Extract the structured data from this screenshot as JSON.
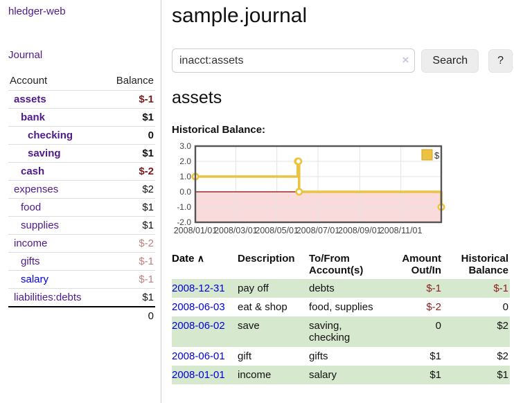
{
  "colors": {
    "link_purple": "#4e1a8b",
    "link_blue": "#0000dd",
    "negative_dark": "#7c1a1a",
    "negative_light": "#c07f7f",
    "row_green": "#d6e8ce",
    "chart_gold": "#edc240",
    "chart_pink": "#fadbdb",
    "chart_zero_line": "#8b0000",
    "chart_border": "#545454",
    "chart_grid": "#e3e3e3"
  },
  "sidebar": {
    "app_title": "hledger-web",
    "nav_journal": "Journal",
    "accounts_table": {
      "header_account": "Account",
      "header_balance": "Balance",
      "rows": [
        {
          "label": "assets",
          "indent": 1,
          "bold": true,
          "color": "purple",
          "balance": "$-1",
          "balance_class": "bal-neg"
        },
        {
          "label": "bank",
          "indent": 2,
          "bold": true,
          "color": "purple",
          "balance": "$1",
          "balance_class": "bal-pos"
        },
        {
          "label": "checking",
          "indent": 3,
          "bold": true,
          "color": "purple",
          "balance": "0",
          "balance_class": "bal-pos"
        },
        {
          "label": "saving",
          "indent": 3,
          "bold": true,
          "color": "purple",
          "balance": "$1",
          "balance_class": "bal-pos"
        },
        {
          "label": "cash",
          "indent": 2,
          "bold": true,
          "color": "purple",
          "balance": "$-2",
          "balance_class": "bal-neg"
        },
        {
          "label": "expenses",
          "indent": 1,
          "bold": false,
          "color": "purple",
          "balance": "$2",
          "balance_class": "bal-pos"
        },
        {
          "label": "food",
          "indent": 2,
          "bold": false,
          "color": "purple",
          "balance": "$1",
          "balance_class": "bal-pos"
        },
        {
          "label": "supplies",
          "indent": 2,
          "bold": false,
          "color": "purple",
          "balance": "$1",
          "balance_class": "bal-pos"
        },
        {
          "label": "income",
          "indent": 1,
          "bold": false,
          "color": "purple",
          "balance": "$-2",
          "balance_class": "bal-neg-light"
        },
        {
          "label": "gifts",
          "indent": 2,
          "bold": false,
          "color": "purple",
          "balance": "$-1",
          "balance_class": "bal-neg-light"
        },
        {
          "label": "salary",
          "indent": 2,
          "bold": false,
          "color": "blue",
          "balance": "$-1",
          "balance_class": "bal-neg-light"
        },
        {
          "label": "liabilities:debts",
          "indent": 1,
          "bold": false,
          "color": "purple",
          "balance": "$1",
          "balance_class": "bal-pos"
        }
      ],
      "total": "0"
    }
  },
  "main": {
    "title": "sample.journal",
    "search": {
      "value": "inacct:assets",
      "clear_icon": "×",
      "button_label": "Search",
      "help_label": "?"
    },
    "account_heading": "assets",
    "chart_title": "Historical Balance:",
    "transactions": {
      "header_date": "Date",
      "sort_indicator": "∧",
      "header_description": "Description",
      "header_accounts": "To/From Account(s)",
      "header_amount": "Amount Out/In",
      "header_balance": "Historical Balance",
      "rows": [
        {
          "date": "2008-12-31",
          "description": "pay off",
          "accounts": "debts",
          "amount": "$-1",
          "amount_negative": true,
          "balance": "$-1",
          "balance_negative": true
        },
        {
          "date": "2008-06-03",
          "description": "eat & shop",
          "accounts": "food, supplies",
          "amount": "$-2",
          "amount_negative": true,
          "balance": "0",
          "balance_negative": false
        },
        {
          "date": "2008-06-02",
          "description": "save",
          "accounts": "saving, checking",
          "amount": "0",
          "amount_negative": false,
          "balance": "$2",
          "balance_negative": false
        },
        {
          "date": "2008-06-01",
          "description": "gift",
          "accounts": "gifts",
          "amount": "$1",
          "amount_negative": false,
          "balance": "$2",
          "balance_negative": false
        },
        {
          "date": "2008-01-01",
          "description": "income",
          "accounts": "salary",
          "amount": "$1",
          "amount_negative": false,
          "balance": "$1",
          "balance_negative": false
        }
      ]
    }
  },
  "chart_data": {
    "type": "line",
    "style": "steps",
    "title": "Historical Balance:",
    "series": [
      {
        "name": "$",
        "points": [
          [
            "2008-01-01",
            1
          ],
          [
            "2008-06-01",
            2
          ],
          [
            "2008-06-02",
            2
          ],
          [
            "2008-06-03",
            0
          ],
          [
            "2008-12-31",
            -1
          ]
        ]
      }
    ],
    "x_tick_labels": [
      "2008/01/01",
      "2008/03/01",
      "2008/05/01",
      "2008/07/01",
      "2008/09/01",
      "2008/11/01"
    ],
    "x_tick_dates": [
      "2008-01-01",
      "2008-03-01",
      "2008-05-01",
      "2008-07-01",
      "2008-09-01",
      "2008-11-01"
    ],
    "y_ticks": [
      3.0,
      2.0,
      1.0,
      0.0,
      -1.0,
      -2.0
    ],
    "xlim": [
      "2008-01-01",
      "2008-12-31"
    ],
    "ylim": [
      -2,
      3
    ],
    "legend": {
      "position": "top-right",
      "label": "$"
    },
    "grid": true,
    "negative_region_shaded": true
  }
}
